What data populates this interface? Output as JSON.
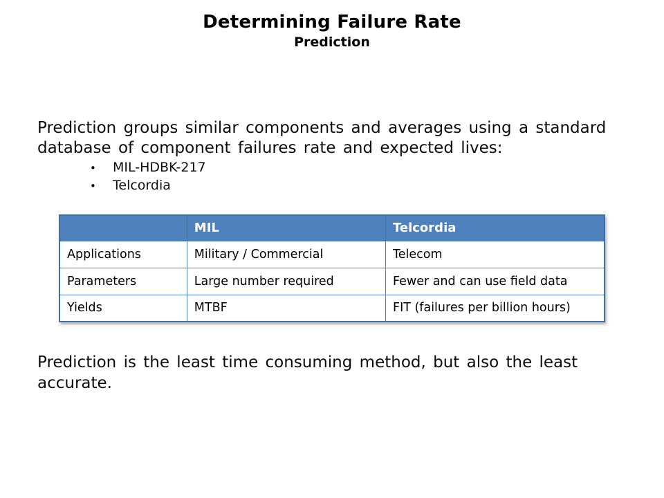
{
  "slide": {
    "title": "Determining Failure Rate",
    "subtitle": "Prediction",
    "intro": "Prediction groups similar components and averages using a standard database of component failures rate and expected lives:",
    "bullets": [
      "MIL-HDBK-217",
      "Telcordia"
    ],
    "bullet_glyph": "•",
    "table": {
      "headers": [
        "",
        "MIL",
        "Telcordia"
      ],
      "rows": [
        [
          "Applications",
          "Military / Commercial",
          "Telecom"
        ],
        [
          "Parameters",
          "Large number required",
          "Fewer and can use field data"
        ],
        [
          "Yields",
          "MTBF",
          "FIT (failures per billion hours)"
        ]
      ],
      "colors": {
        "header_bg": "#4f81bd",
        "header_text": "#ffffff",
        "border_outer": "#41719c",
        "border_inner": "#4f81bd"
      }
    },
    "footer": "Prediction is the least time consuming method, but also the least accurate."
  }
}
